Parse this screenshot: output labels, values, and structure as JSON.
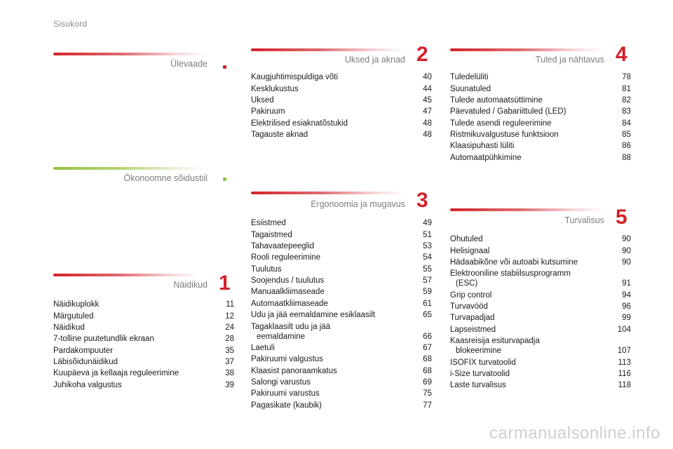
{
  "header": {
    "title": "Sisukord"
  },
  "sections": {
    "ulevaade": {
      "title": "Ülevaade"
    },
    "okonoomne": {
      "title": "Ökonoomne sõidustiil"
    },
    "naidikud": {
      "title": "Näidikud",
      "number": "1",
      "entries": [
        {
          "label": "Näidikuplokk",
          "page": "11"
        },
        {
          "label": "Märgutuled",
          "page": "12"
        },
        {
          "label": "Näidikud",
          "page": "24"
        },
        {
          "label": "7-tolline puutetundlik ekraan",
          "page": "28"
        },
        {
          "label": "Pardakompuuter",
          "page": "35"
        },
        {
          "label": "Läbisõidunäidikud",
          "page": "37"
        },
        {
          "label": "Kuupäeva ja kellaaja reguleerimine",
          "page": "38"
        },
        {
          "label": "Juhikoha valgustus",
          "page": "39"
        }
      ]
    },
    "uksed": {
      "title": "Uksed ja aknad",
      "number": "2",
      "entries": [
        {
          "label": "Kaugjuhtimispuldiga võti",
          "page": "40"
        },
        {
          "label": "Kesklukustus",
          "page": "44"
        },
        {
          "label": "Uksed",
          "page": "45"
        },
        {
          "label": "Pakiruum",
          "page": "47"
        },
        {
          "label": "Elektrilised esiaknatõstukid",
          "page": "48"
        },
        {
          "label": "Tagauste aknad",
          "page": "48"
        }
      ]
    },
    "ergonoomia": {
      "title": "Ergonoomia ja mugavus",
      "number": "3",
      "entries": [
        {
          "label": "Esiistmed",
          "page": "49"
        },
        {
          "label": "Tagaistmed",
          "page": "51"
        },
        {
          "label": "Tahavaatepeeglid",
          "page": "53"
        },
        {
          "label": "Rooli reguleerimine",
          "page": "54"
        },
        {
          "label": "Tuulutus",
          "page": "55"
        },
        {
          "label": "Soojendus / tuulutus",
          "page": "57"
        },
        {
          "label": "Manuaalkliimaseade",
          "page": "59"
        },
        {
          "label": "Automaatkliimaseade",
          "page": "61"
        },
        {
          "label": "Udu ja jää eemaldamine esiklaasilt",
          "page": "65"
        },
        {
          "label": "Tagaklaasilt udu ja jää",
          "label2": "eemaldamine",
          "page": "66"
        },
        {
          "label": "Laetuli",
          "page": "67"
        },
        {
          "label": "Pakiruumi valgustus",
          "page": "68"
        },
        {
          "label": "Klaasist panoraamkatus",
          "page": "68"
        },
        {
          "label": "Salongi varustus",
          "page": "69"
        },
        {
          "label": "Pakiruumi varustus",
          "page": "75"
        },
        {
          "label": "Pagasikate (kaubik)",
          "page": "77"
        }
      ]
    },
    "tuled": {
      "title": "Tuled ja nähtavus",
      "number": "4",
      "entries": [
        {
          "label": "Tuledelüliti",
          "page": "78"
        },
        {
          "label": "Suunatuled",
          "page": "81"
        },
        {
          "label": "Tulede automaatsüttimine",
          "page": "82"
        },
        {
          "label": "Päevatuled / Gabariittuled (LED)",
          "page": "83"
        },
        {
          "label": "Tulede asendi reguleerimine",
          "page": "84"
        },
        {
          "label": "Ristmikuvalgustuse funktsioon",
          "page": "85"
        },
        {
          "label": "Klaasipuhasti lüliti",
          "page": "86"
        },
        {
          "label": "Automaatpühkimine",
          "page": "88"
        }
      ]
    },
    "turvalisus": {
      "title": "Turvalisus",
      "number": "5",
      "entries": [
        {
          "label": "Ohutuled",
          "page": "90"
        },
        {
          "label": "Helisignaal",
          "page": "90"
        },
        {
          "label": "Hädaabikõne või autoabi kutsumine",
          "page": "90"
        },
        {
          "label": "Elektrooniline stabiilsusprogramm",
          "label2": "(ESC)",
          "page": "91"
        },
        {
          "label": "Grip control",
          "page": "94"
        },
        {
          "label": "Turvavööd",
          "page": "96"
        },
        {
          "label": "Turvapadjad",
          "page": "99"
        },
        {
          "label": "Lapseistmed",
          "page": "104"
        },
        {
          "label": "Kaasreisija esiturvapadja",
          "label2": "blokeerimine",
          "page": "107"
        },
        {
          "label": "ISOFIX turvatoolid",
          "page": "113"
        },
        {
          "label": "i-Size turvatoolid",
          "page": "116"
        },
        {
          "label": "Laste turvalisus",
          "page": "118"
        }
      ]
    }
  },
  "watermark": "carmanualsonline.info"
}
